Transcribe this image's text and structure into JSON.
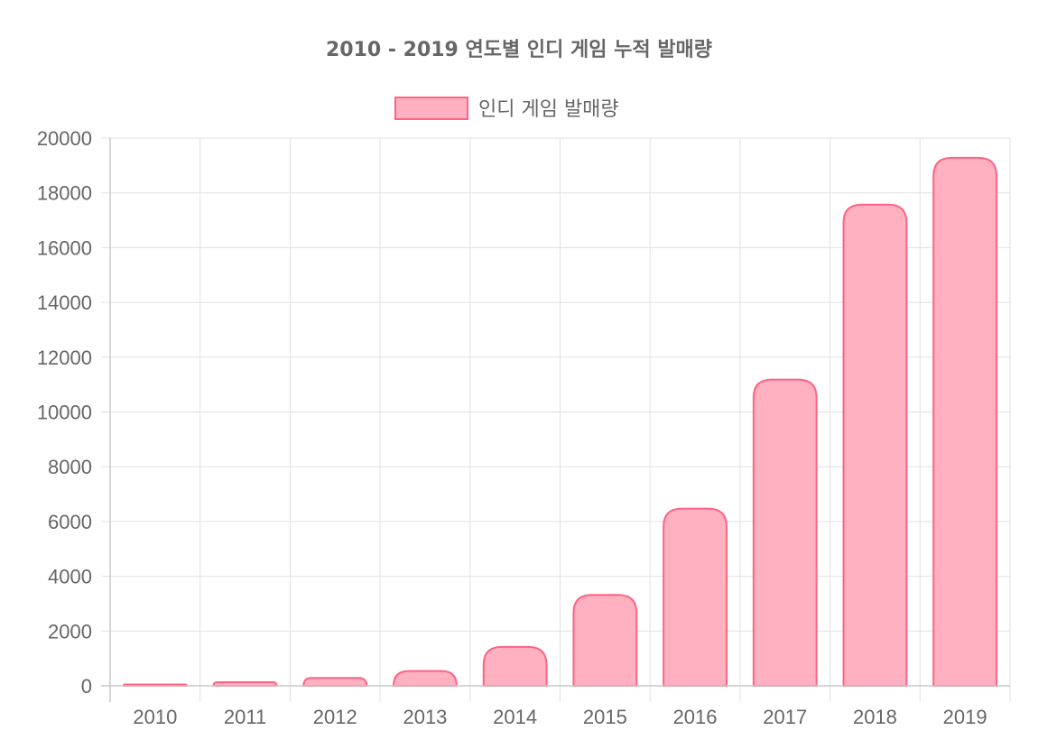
{
  "chart_data": {
    "type": "bar",
    "title": "2010 - 2019 연도별 인디 게임 누적 발매량",
    "categories": [
      "2010",
      "2011",
      "2012",
      "2013",
      "2014",
      "2015",
      "2016",
      "2017",
      "2018",
      "2019"
    ],
    "series": [
      {
        "name": "인디 게임 발매량",
        "values": [
          50,
          130,
          290,
          540,
          1420,
          3320,
          6470,
          11180,
          17570,
          19280
        ]
      }
    ],
    "yticks": [
      "0",
      "2000",
      "4000",
      "6000",
      "8000",
      "10000",
      "12000",
      "14000",
      "16000",
      "18000",
      "20000"
    ],
    "ylim": [
      0,
      20000
    ],
    "grid": true,
    "legend_position": "top-center",
    "colors": {
      "bar_fill": "#ffb1c1",
      "bar_border": "#ff6384",
      "text": "#666666",
      "grid": "#e1e1e1"
    }
  }
}
